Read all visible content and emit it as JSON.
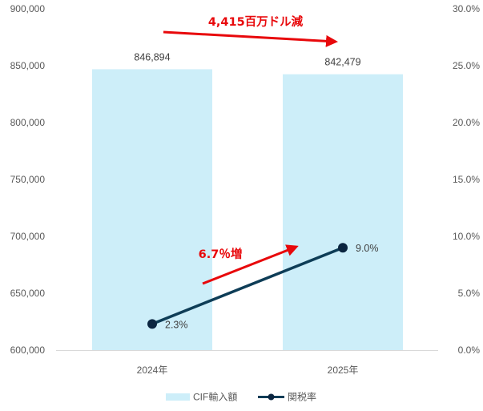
{
  "chart_data": {
    "type": "bar+line",
    "categories": [
      "2024年",
      "2025年"
    ],
    "series": [
      {
        "name": "CIF輸入額",
        "type": "bar",
        "axis": "left",
        "values": [
          846894,
          842479
        ],
        "labels": [
          "846,894",
          "842,479"
        ],
        "color": "#cdeef9"
      },
      {
        "name": "関税率",
        "type": "line",
        "axis": "right",
        "values": [
          2.3,
          9.0
        ],
        "labels": [
          "2.3%",
          "9.0%"
        ],
        "color": "#0e3d57",
        "marker_color": "#0b2540"
      }
    ],
    "y_left": {
      "ylim": [
        600000,
        900000
      ],
      "ticks": [
        "600,000",
        "650,000",
        "700,000",
        "750,000",
        "800,000",
        "850,000",
        "900,000"
      ]
    },
    "y_right": {
      "ylim": [
        0,
        30
      ],
      "ticks": [
        "0.0%",
        "5.0%",
        "10.0%",
        "15.0%",
        "20.0%",
        "25.0%",
        "30.0%"
      ]
    },
    "annotations": [
      {
        "text": "4,415百万ドル減",
        "color": "#e8080b"
      },
      {
        "text": "6.7％増",
        "color": "#e8080b"
      }
    ],
    "legend": {
      "placement": "bottom"
    },
    "grid": false
  }
}
